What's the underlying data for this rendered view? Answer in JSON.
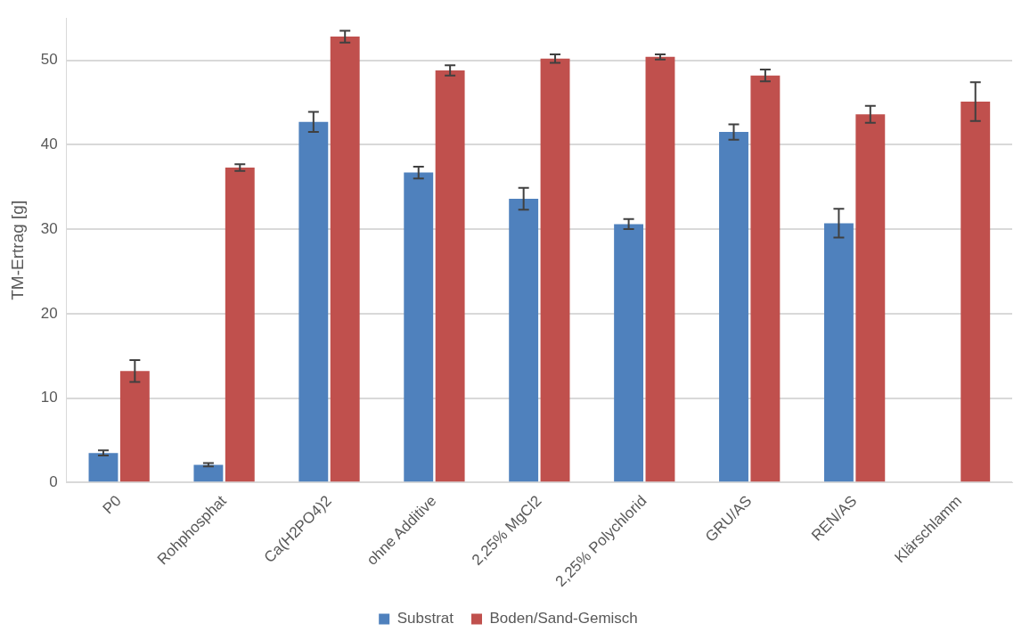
{
  "chart_data": {
    "type": "bar",
    "ylabel": "TM-Ertrag [g]",
    "categories": [
      "P0",
      "Rohphosphat",
      "Ca(H2PO4)2",
      "ohne Additive",
      "2,25% MgCl2",
      "2,25% Polychlorid",
      "GRU/AS",
      "REN/AS",
      "Klärschlamm"
    ],
    "series": [
      {
        "name": "Substrat",
        "color": "#4f81bd",
        "values": [
          3.5,
          2.1,
          42.7,
          36.7,
          33.6,
          30.6,
          41.5,
          30.7,
          null
        ],
        "errors": [
          0.3,
          0.2,
          1.2,
          0.7,
          1.3,
          0.6,
          0.9,
          1.7,
          null
        ]
      },
      {
        "name": "Boden/Sand-Gemisch",
        "color": "#c0504d",
        "values": [
          13.2,
          37.3,
          52.8,
          48.8,
          50.2,
          50.4,
          48.2,
          43.6,
          45.1
        ],
        "errors": [
          1.3,
          0.4,
          0.7,
          0.6,
          0.5,
          0.3,
          0.7,
          1.0,
          2.3
        ]
      }
    ],
    "ylim": [
      0,
      55
    ],
    "yticks": [
      0,
      10,
      20,
      30,
      40,
      50
    ],
    "grid": "y",
    "legend": "bottom"
  }
}
